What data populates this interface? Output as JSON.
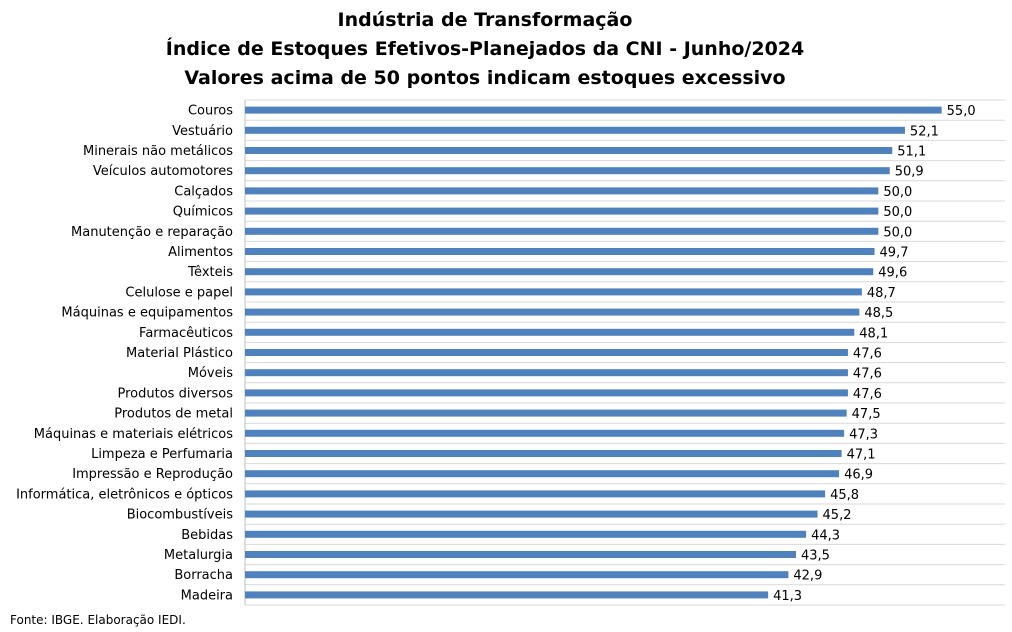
{
  "chart_data": {
    "type": "bar",
    "orientation": "horizontal",
    "title_lines": [
      "Indústria de Transformação",
      "Índice de Estoques Efetivos-Planejados da CNI - Junho/2024",
      "Valores acima de 50 pontos indicam estoques excessivo"
    ],
    "categories": [
      "Couros",
      "Vestuário",
      "Minerais não metálicos",
      "Veículos automotores",
      "Calçados",
      "Químicos",
      "Manutenção e reparação",
      "Alimentos",
      "Têxteis",
      "Celulose e papel",
      "Máquinas e equipamentos",
      "Farmacêuticos",
      "Material Plástico",
      "Móveis",
      "Produtos diversos",
      "Produtos de metal",
      "Máquinas e materiais elétricos",
      "Limpeza e Perfumaria",
      "Impressão e Reprodução",
      "Informática, eletrônicos e ópticos",
      "Biocombustíveis",
      "Bebidas",
      "Metalurgia",
      "Borracha",
      "Madeira"
    ],
    "values": [
      55.0,
      52.1,
      51.1,
      50.9,
      50.0,
      50.0,
      50.0,
      49.7,
      49.6,
      48.7,
      48.5,
      48.1,
      47.6,
      47.6,
      47.6,
      47.5,
      47.3,
      47.1,
      46.9,
      45.8,
      45.2,
      44.3,
      43.5,
      42.9,
      41.3
    ],
    "value_labels": [
      "55,0",
      "52,1",
      "51,1",
      "50,9",
      "50,0",
      "50,0",
      "50,0",
      "49,7",
      "49,6",
      "48,7",
      "48,5",
      "48,1",
      "47,6",
      "47,6",
      "47,6",
      "47,5",
      "47,3",
      "47,1",
      "46,9",
      "45,8",
      "45,2",
      "44,3",
      "43,5",
      "42,9",
      "41,3"
    ],
    "xlim": [
      0,
      60
    ],
    "grid": true,
    "legend": "none",
    "bar_color": "#4f81bd"
  },
  "footer": {
    "source": "Fonte: IBGE. Elaboração IEDI."
  }
}
